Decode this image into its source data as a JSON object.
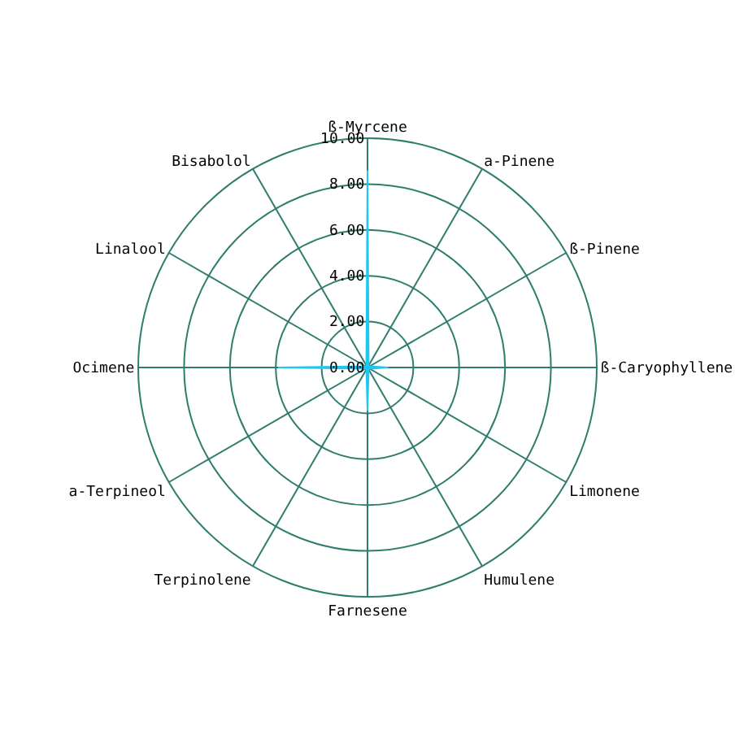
{
  "chart_data": {
    "type": "radar",
    "categories": [
      "ß-Myrcene",
      "a-Pinene",
      "ß-Pinene",
      "ß-Caryophyllene",
      "Limonene",
      "Humulene",
      "Farnesene",
      "Terpinolene",
      "a-Terpineol",
      "Ocimene",
      "Linalool",
      "Bisabolol"
    ],
    "series": [
      {
        "color": "#1ec8f0",
        "values": [
          8.6,
          0.1,
          0.1,
          0.9,
          0.1,
          0.1,
          1.9,
          0.1,
          0.1,
          3.9,
          0.1,
          0.1
        ]
      }
    ],
    "ylim": [
      0,
      10
    ],
    "yticks": [
      {
        "value": 0,
        "label": "0.00"
      },
      {
        "value": 2,
        "label": "2.00"
      },
      {
        "value": 4,
        "label": "4.00"
      },
      {
        "value": 6,
        "label": "6.00"
      },
      {
        "value": 8,
        "label": "8.00"
      },
      {
        "value": 10,
        "label": "10.00"
      }
    ],
    "grid": true
  }
}
